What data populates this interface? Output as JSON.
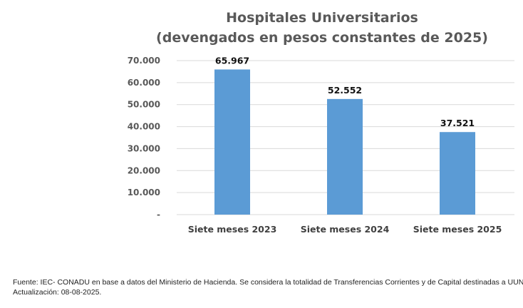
{
  "chart_data": {
    "type": "bar",
    "title": "Hospitales Universitarios",
    "subtitle": "(devengados en pesos constantes de 2025)",
    "categories": [
      "Siete meses 2023",
      "Siete meses 2024",
      "Siete meses 2025"
    ],
    "values": [
      65967,
      52552,
      37521
    ],
    "data_labels": [
      "65.967",
      "52.552",
      "37.521"
    ],
    "ylim": [
      0,
      70000
    ],
    "yticks": [
      0,
      10000,
      20000,
      30000,
      40000,
      50000,
      60000,
      70000
    ],
    "ytick_labels": [
      "-",
      "10.000",
      "20.000",
      "30.000",
      "40.000",
      "50.000",
      "60.000",
      "70.000"
    ],
    "grid": true,
    "bar_color": "#5b9bd5",
    "xlabel": "",
    "ylabel": ""
  },
  "footer": {
    "source": "Fuente: IEC- CONADU en base a datos del Ministerio de Hacienda. Se considera la totalidad de Transferencias Corrientes  y de Capital destinadas a UUNN.",
    "updated": "Actualización: 08-08-2025."
  }
}
